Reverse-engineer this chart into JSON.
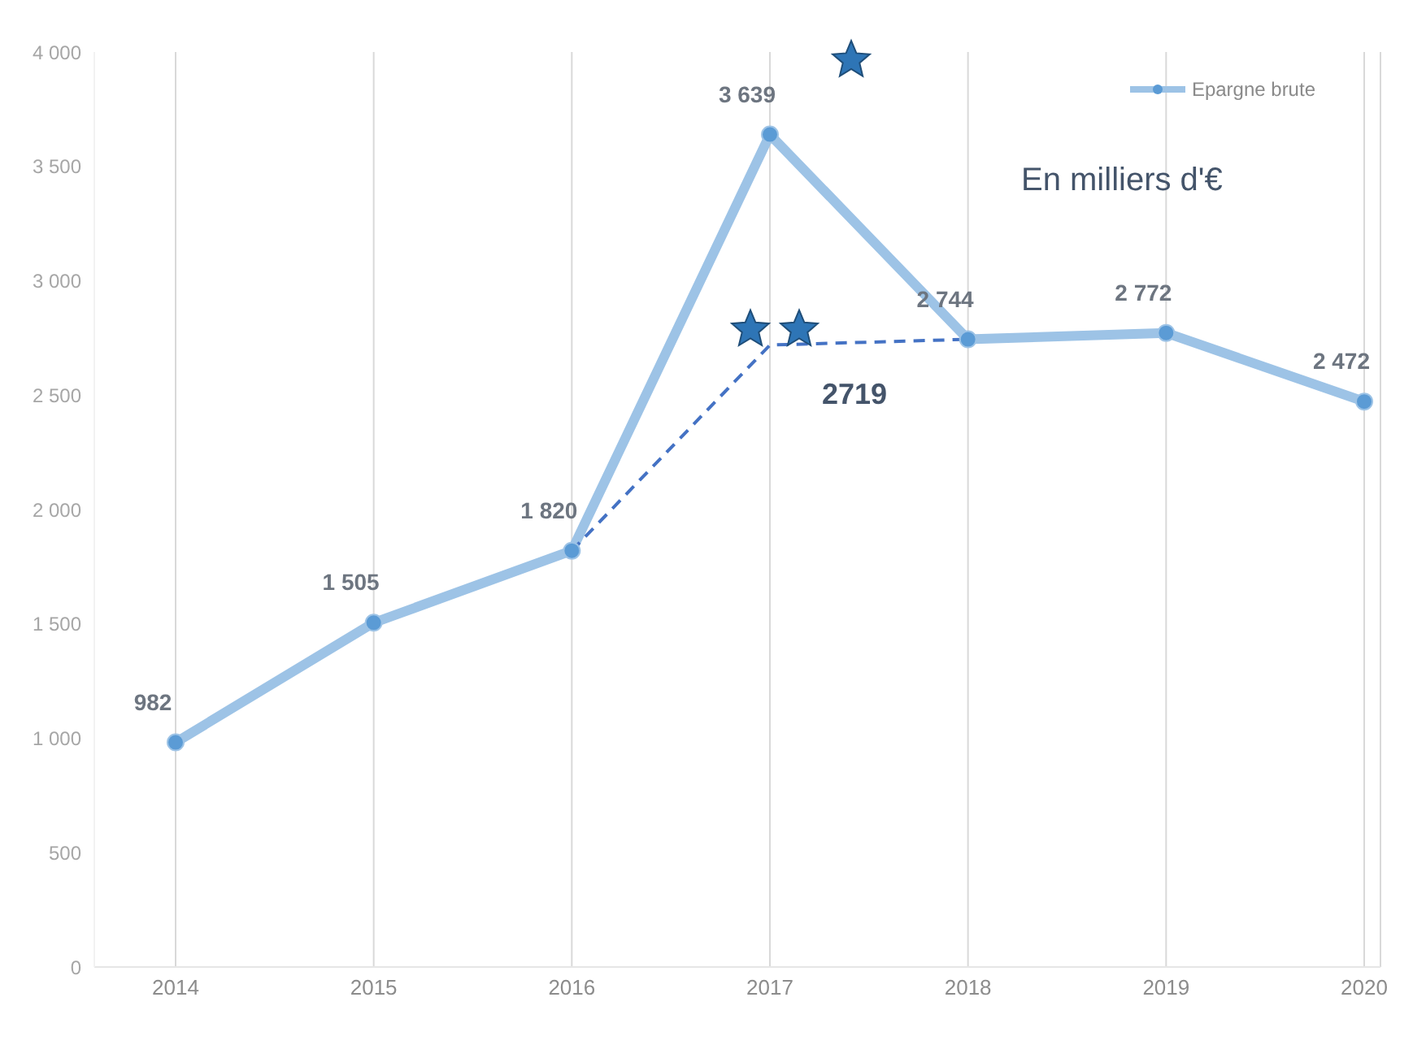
{
  "chart_data": {
    "type": "line",
    "categories": [
      "2014",
      "2015",
      "2016",
      "2017",
      "2018",
      "2019",
      "2020"
    ],
    "series": [
      {
        "name": "Epargne brute",
        "color": "#9dc3e6",
        "values": [
          982,
          1505,
          1820,
          3639,
          2744,
          2772,
          2472
        ],
        "value_labels": [
          "982",
          "1 505",
          "1 820",
          "3 639",
          "2 744",
          "2 772",
          "2 472"
        ],
        "marker": "circle",
        "line_style": "solid"
      },
      {
        "color": "#4472c4",
        "values": [
          null,
          null,
          1820,
          2719,
          2744,
          null,
          null
        ],
        "value_labels": [
          null,
          null,
          null,
          "2719",
          null,
          null,
          null
        ],
        "marker": "none",
        "line_style": "dashed"
      }
    ],
    "ylim": [
      0,
      4000
    ],
    "yticks": [
      {
        "value": 0,
        "label": "0"
      },
      {
        "value": 500,
        "label": "500"
      },
      {
        "value": 1000,
        "label": "1 000"
      },
      {
        "value": 1500,
        "label": "1 500"
      },
      {
        "value": 2000,
        "label": "2 000"
      },
      {
        "value": 2500,
        "label": "2 500"
      },
      {
        "value": 3000,
        "label": "3 000"
      },
      {
        "value": 3500,
        "label": "3 500"
      },
      {
        "value": 4000,
        "label": "4 000"
      }
    ],
    "grid": "x",
    "legend": "top right",
    "annotations": [
      "En milliers d'€"
    ]
  }
}
